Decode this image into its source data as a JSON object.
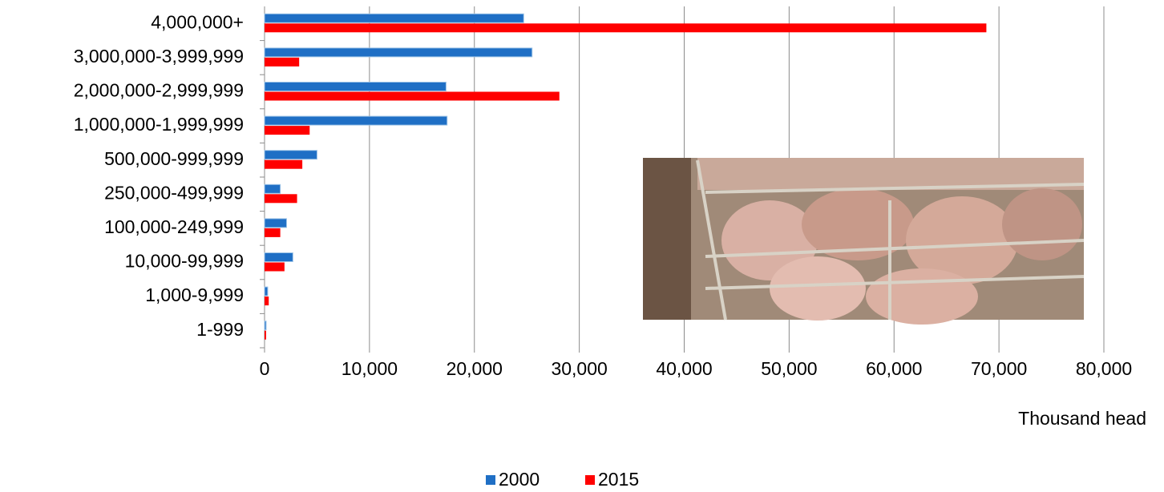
{
  "chart_data": {
    "type": "hbar",
    "categories": [
      "4,000,000+",
      "3,000,000-3,999,999",
      "2,000,000-2,999,999",
      "1,000,000-1,999,999",
      "500,000-999,999",
      "250,000-499,999",
      "100,000-249,999",
      "10,000-99,999",
      "1,000-9,999",
      "1-999"
    ],
    "series": [
      {
        "name": "2000",
        "color": "#1f6fc5",
        "values": [
          24700,
          25500,
          17300,
          17400,
          5000,
          1500,
          2100,
          2700,
          300,
          150
        ]
      },
      {
        "name": "2015",
        "color": "#ff0000",
        "values": [
          68800,
          3300,
          28100,
          4300,
          3600,
          3100,
          1500,
          1900,
          400,
          150
        ]
      }
    ],
    "x_label": "Thousand head",
    "xlim": [
      0,
      80000
    ],
    "xticks": [
      {
        "value": 0,
        "label": "0"
      },
      {
        "value": 10000,
        "label": "10,000"
      },
      {
        "value": 20000,
        "label": "20,000"
      },
      {
        "value": 30000,
        "label": "30,000"
      },
      {
        "value": 40000,
        "label": "40,000"
      },
      {
        "value": 50000,
        "label": "50,000"
      },
      {
        "value": 60000,
        "label": "60,000"
      },
      {
        "value": 70000,
        "label": "70,000"
      },
      {
        "value": 80000,
        "label": "80,000"
      }
    ],
    "grid": true,
    "legend": "bottom"
  }
}
